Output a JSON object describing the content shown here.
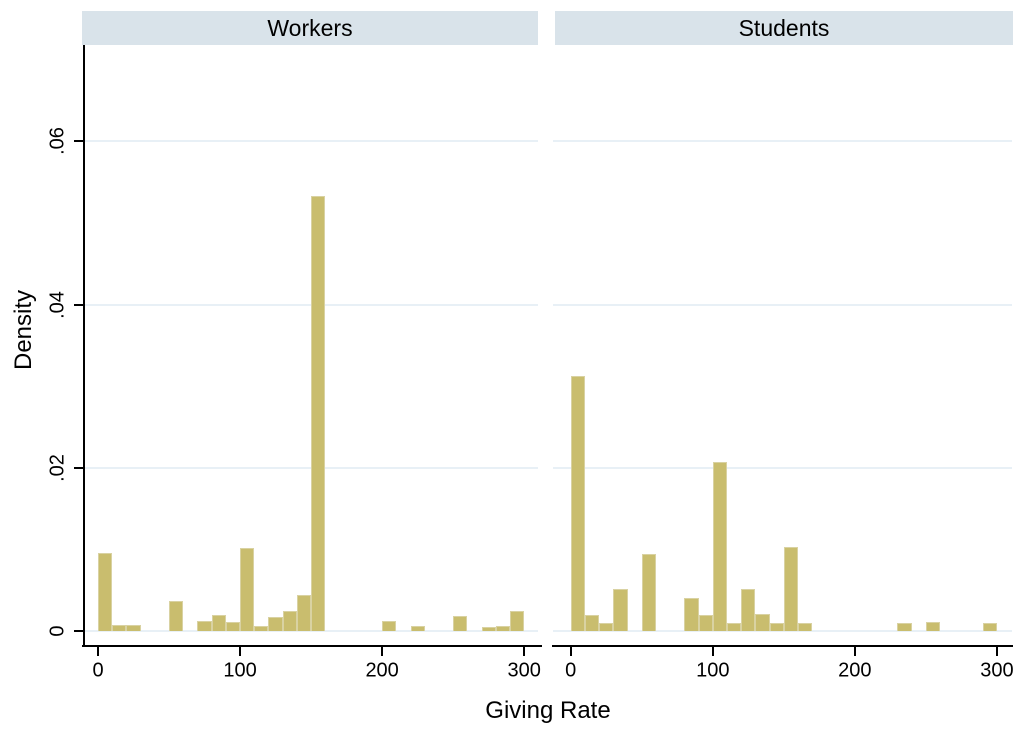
{
  "chart_data": {
    "type": "bar",
    "subtype": "histogram",
    "title": "",
    "xlabel": "Giving Rate",
    "ylabel": "Density",
    "bin_width": 10,
    "xlim": [
      -10,
      310
    ],
    "ylim": [
      0,
      0.072
    ],
    "grid": true,
    "x_ticks": [
      0,
      100,
      200,
      300
    ],
    "x_tick_labels": [
      "0",
      "100",
      "200",
      "300"
    ],
    "y_ticks": [
      0,
      0.02,
      0.04,
      0.06
    ],
    "y_tick_labels": [
      "0",
      ".02",
      ".04",
      ".06"
    ],
    "panels": [
      {
        "title": "Workers",
        "bins": [
          {
            "x": 0,
            "density": 0.0095
          },
          {
            "x": 10,
            "density": 0.0007
          },
          {
            "x": 20,
            "density": 0.0007
          },
          {
            "x": 50,
            "density": 0.0037
          },
          {
            "x": 70,
            "density": 0.0012
          },
          {
            "x": 80,
            "density": 0.002
          },
          {
            "x": 90,
            "density": 0.0011
          },
          {
            "x": 100,
            "density": 0.0102
          },
          {
            "x": 110,
            "density": 0.0006
          },
          {
            "x": 120,
            "density": 0.0017
          },
          {
            "x": 130,
            "density": 0.0025
          },
          {
            "x": 140,
            "density": 0.0044
          },
          {
            "x": 150,
            "density": 0.0533
          },
          {
            "x": 200,
            "density": 0.0012
          },
          {
            "x": 220,
            "density": 0.0006
          },
          {
            "x": 250,
            "density": 0.0018
          },
          {
            "x": 270,
            "density": 0.0005
          },
          {
            "x": 280,
            "density": 0.0006
          },
          {
            "x": 290,
            "density": 0.0025
          }
        ]
      },
      {
        "title": "Students",
        "bins": [
          {
            "x": 0,
            "density": 0.0313
          },
          {
            "x": 10,
            "density": 0.002
          },
          {
            "x": 20,
            "density": 0.001
          },
          {
            "x": 30,
            "density": 0.0052
          },
          {
            "x": 50,
            "density": 0.0094
          },
          {
            "x": 80,
            "density": 0.0041
          },
          {
            "x": 90,
            "density": 0.002
          },
          {
            "x": 100,
            "density": 0.0207
          },
          {
            "x": 110,
            "density": 0.001
          },
          {
            "x": 120,
            "density": 0.0052
          },
          {
            "x": 130,
            "density": 0.0021
          },
          {
            "x": 140,
            "density": 0.001
          },
          {
            "x": 150,
            "density": 0.0103
          },
          {
            "x": 160,
            "density": 0.001
          },
          {
            "x": 230,
            "density": 0.001
          },
          {
            "x": 250,
            "density": 0.0011
          },
          {
            "x": 290,
            "density": 0.001
          }
        ]
      }
    ],
    "colors": {
      "bar_fill": "#c9bd6e",
      "bar_edge": "#d9d2a2",
      "header_bg": "#d9e3ea",
      "grid": "#e8f0f6",
      "axis": "#000000"
    }
  }
}
